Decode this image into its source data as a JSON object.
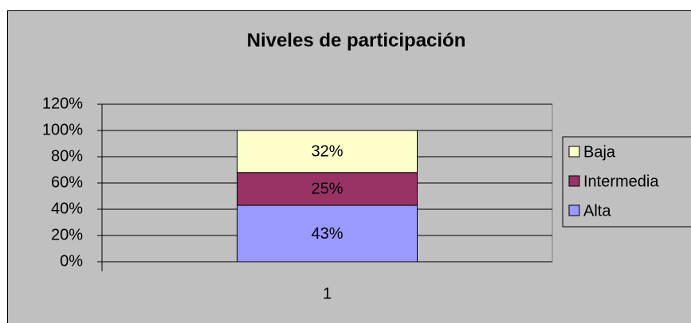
{
  "chart_data": {
    "type": "stacked_bar",
    "title": "Niveles de participación",
    "categories": [
      "1"
    ],
    "series": [
      {
        "name": "Alta",
        "color": "#9999ff",
        "values": [
          43
        ],
        "value_labels": [
          "43%"
        ]
      },
      {
        "name": "Intermedia",
        "color": "#993366",
        "values": [
          25
        ],
        "value_labels": [
          "25%"
        ]
      },
      {
        "name": "Baja",
        "color": "#ffffcc",
        "values": [
          32
        ],
        "value_labels": [
          "32%"
        ]
      }
    ],
    "ylim": [
      0,
      120
    ],
    "yticks": [
      {
        "value": 0,
        "label": "0%"
      },
      {
        "value": 20,
        "label": "20%"
      },
      {
        "value": 40,
        "label": "40%"
      },
      {
        "value": 60,
        "label": "60%"
      },
      {
        "value": 80,
        "label": "80%"
      },
      {
        "value": 100,
        "label": "100%"
      },
      {
        "value": 120,
        "label": "120%"
      }
    ],
    "grid": true,
    "legend": "right"
  }
}
